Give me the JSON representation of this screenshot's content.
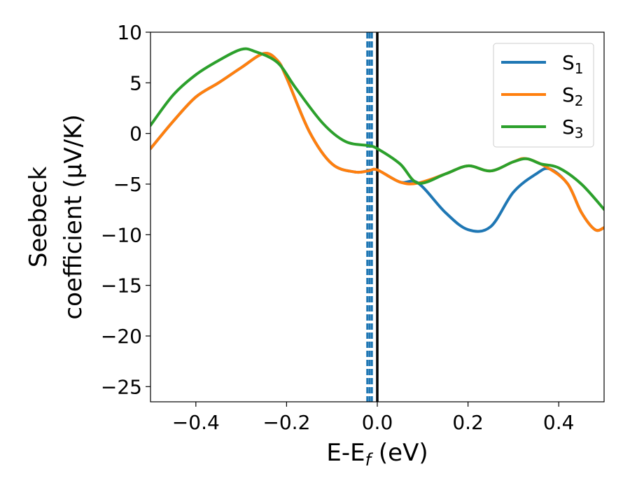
{
  "chart_data": {
    "type": "line",
    "title": "",
    "xlabel": {
      "main": "E-E",
      "sub": "f",
      "suffix": " (eV)"
    },
    "ylabel": {
      "line1": "Seebeck",
      "line2": "coefficient  (μV/K)"
    },
    "xlim": [
      -0.5,
      0.5
    ],
    "ylim": [
      -26.5,
      10
    ],
    "xticks": [
      -0.4,
      -0.2,
      0.0,
      0.2,
      0.4
    ],
    "xtick_labels": [
      "−0.4",
      "−0.2",
      "0.0",
      "0.2",
      "0.4"
    ],
    "yticks": [
      10,
      5,
      0,
      -5,
      -10,
      -15,
      -20,
      -25
    ],
    "ytick_labels": [
      "10",
      "5",
      "0",
      "−5",
      "−10",
      "−15",
      "−20",
      "−25"
    ],
    "grid": false,
    "legend_position": "top-right",
    "vlines": [
      {
        "x": 0.0,
        "style": "solid",
        "color": "#000000"
      },
      {
        "x": -0.022,
        "style": "dashed",
        "color": "#1f77b4"
      },
      {
        "x": -0.017,
        "style": "dashed",
        "color": "#1f77b4"
      },
      {
        "x": -0.012,
        "style": "dashed",
        "color": "#1f77b4"
      }
    ],
    "series": [
      {
        "name": "S",
        "sub": "1",
        "color": "#1f77b4",
        "points": [
          [
            -0.5,
            -1.5
          ],
          [
            -0.45,
            1.2
          ],
          [
            -0.4,
            3.6
          ],
          [
            -0.35,
            5.0
          ],
          [
            -0.3,
            6.5
          ],
          [
            -0.25,
            7.9
          ],
          [
            -0.22,
            7.2
          ],
          [
            -0.2,
            5.5
          ],
          [
            -0.15,
            0.2
          ],
          [
            -0.1,
            -3.0
          ],
          [
            -0.05,
            -3.8
          ],
          [
            -0.02,
            -3.7
          ],
          [
            0.0,
            -3.6
          ],
          [
            0.05,
            -4.8
          ],
          [
            0.09,
            -4.9
          ],
          [
            0.15,
            -7.8
          ],
          [
            0.2,
            -9.5
          ],
          [
            0.25,
            -9.2
          ],
          [
            0.3,
            -5.8
          ],
          [
            0.35,
            -4.0
          ],
          [
            0.38,
            -3.5
          ],
          [
            0.42,
            -5.0
          ],
          [
            0.45,
            -7.8
          ],
          [
            0.48,
            -9.5
          ],
          [
            0.5,
            -9.3
          ]
        ]
      },
      {
        "name": "S",
        "sub": "2",
        "color": "#ff7f0e",
        "points": [
          [
            -0.5,
            -1.5
          ],
          [
            -0.45,
            1.2
          ],
          [
            -0.4,
            3.6
          ],
          [
            -0.35,
            5.0
          ],
          [
            -0.3,
            6.5
          ],
          [
            -0.25,
            7.9
          ],
          [
            -0.22,
            7.2
          ],
          [
            -0.2,
            5.5
          ],
          [
            -0.15,
            0.2
          ],
          [
            -0.1,
            -3.0
          ],
          [
            -0.05,
            -3.8
          ],
          [
            -0.02,
            -3.7
          ],
          [
            0.0,
            -3.6
          ],
          [
            0.05,
            -4.8
          ],
          [
            0.09,
            -4.9
          ],
          [
            0.15,
            -4.0
          ],
          [
            0.2,
            -3.2
          ],
          [
            0.25,
            -3.7
          ],
          [
            0.3,
            -2.8
          ],
          [
            0.33,
            -2.5
          ],
          [
            0.38,
            -3.5
          ],
          [
            0.42,
            -5.0
          ],
          [
            0.45,
            -7.8
          ],
          [
            0.48,
            -9.5
          ],
          [
            0.5,
            -9.3
          ]
        ]
      },
      {
        "name": "S",
        "sub": "3",
        "color": "#2ca02c",
        "points": [
          [
            -0.5,
            0.8
          ],
          [
            -0.45,
            3.8
          ],
          [
            -0.4,
            5.8
          ],
          [
            -0.35,
            7.2
          ],
          [
            -0.3,
            8.3
          ],
          [
            -0.27,
            8.1
          ],
          [
            -0.22,
            7.0
          ],
          [
            -0.18,
            4.5
          ],
          [
            -0.12,
            1.0
          ],
          [
            -0.07,
            -0.8
          ],
          [
            -0.02,
            -1.2
          ],
          [
            0.0,
            -1.5
          ],
          [
            0.05,
            -3.0
          ],
          [
            0.09,
            -4.9
          ],
          [
            0.15,
            -4.0
          ],
          [
            0.2,
            -3.2
          ],
          [
            0.25,
            -3.7
          ],
          [
            0.3,
            -2.8
          ],
          [
            0.33,
            -2.5
          ],
          [
            0.36,
            -3.0
          ],
          [
            0.4,
            -3.4
          ],
          [
            0.45,
            -5.0
          ],
          [
            0.5,
            -7.5
          ]
        ]
      }
    ]
  }
}
